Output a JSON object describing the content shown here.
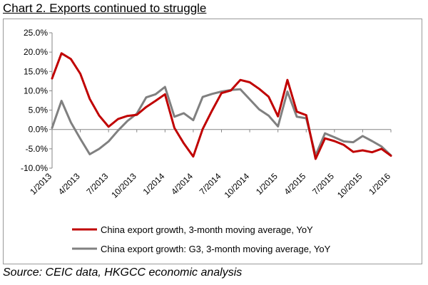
{
  "chart_data": {
    "type": "line",
    "title": "Chart 2. Exports continued to struggle",
    "source": "Source: CEIC data, HKGCC economic analysis",
    "xlabel": "",
    "ylabel": "",
    "ylim": [
      -10,
      25
    ],
    "y_ticks": [
      25,
      20,
      15,
      10,
      5,
      0,
      -5,
      -10
    ],
    "y_tick_labels": [
      "25.0%",
      "20.0%",
      "15.0%",
      "10.0%",
      "5.0%",
      "0.0%",
      "-5.0%",
      "-10.0%"
    ],
    "x_tick_labels": [
      "1/2013",
      "4/2013",
      "7/2013",
      "10/2013",
      "1/2014",
      "4/2014",
      "7/2014",
      "10/2014",
      "1/2015",
      "4/2015",
      "7/2015",
      "10/2015",
      "1/2016"
    ],
    "x_ticks": [
      "2013-01",
      "2013-04",
      "2013-07",
      "2013-10",
      "2014-01",
      "2014-04",
      "2014-07",
      "2014-10",
      "2015-01",
      "2015-04",
      "2015-07",
      "2015-10",
      "2016-01"
    ],
    "x": [
      "2013-01",
      "2013-02",
      "2013-03",
      "2013-04",
      "2013-05",
      "2013-06",
      "2013-07",
      "2013-08",
      "2013-09",
      "2013-10",
      "2013-11",
      "2013-12",
      "2014-01",
      "2014-02",
      "2014-03",
      "2014-04",
      "2014-05",
      "2014-06",
      "2014-07",
      "2014-08",
      "2014-09",
      "2014-10",
      "2014-11",
      "2014-12",
      "2015-01",
      "2015-02",
      "2015-03",
      "2015-04",
      "2015-05",
      "2015-06",
      "2015-07",
      "2015-08",
      "2015-09",
      "2015-10",
      "2015-11",
      "2015-12",
      "2016-01"
    ],
    "grid": false,
    "legend_position": "bottom",
    "series": [
      {
        "name": "China export growth, 3-month moving average, YoY",
        "color": "#c00000",
        "values": [
          13.2,
          19.7,
          18.2,
          14.4,
          7.9,
          3.6,
          0.7,
          2.7,
          3.5,
          3.8,
          5.8,
          7.4,
          9.1,
          0.4,
          -3.6,
          -7.0,
          0.1,
          4.9,
          9.4,
          10.1,
          12.8,
          12.2,
          10.5,
          8.5,
          3.4,
          12.8,
          4.6,
          3.7,
          -7.6,
          -2.3,
          -3.0,
          -4.0,
          -5.8,
          -5.4,
          -5.9,
          -5.0,
          -6.8
        ]
      },
      {
        "name": "China export growth: G3, 3-month moving average, YoY",
        "color": "#808080",
        "values": [
          0.4,
          7.4,
          1.8,
          -2.4,
          -6.4,
          -5.0,
          -3.1,
          -0.3,
          2.2,
          4.1,
          8.3,
          9.1,
          11.0,
          3.3,
          4.2,
          2.4,
          8.4,
          9.2,
          9.8,
          10.2,
          10.4,
          7.8,
          5.2,
          3.6,
          0.8,
          9.8,
          3.3,
          2.9,
          -6.7,
          -1.0,
          -2.0,
          -3.1,
          -3.3,
          -1.7,
          -3.0,
          -4.4,
          -6.7
        ]
      }
    ]
  }
}
